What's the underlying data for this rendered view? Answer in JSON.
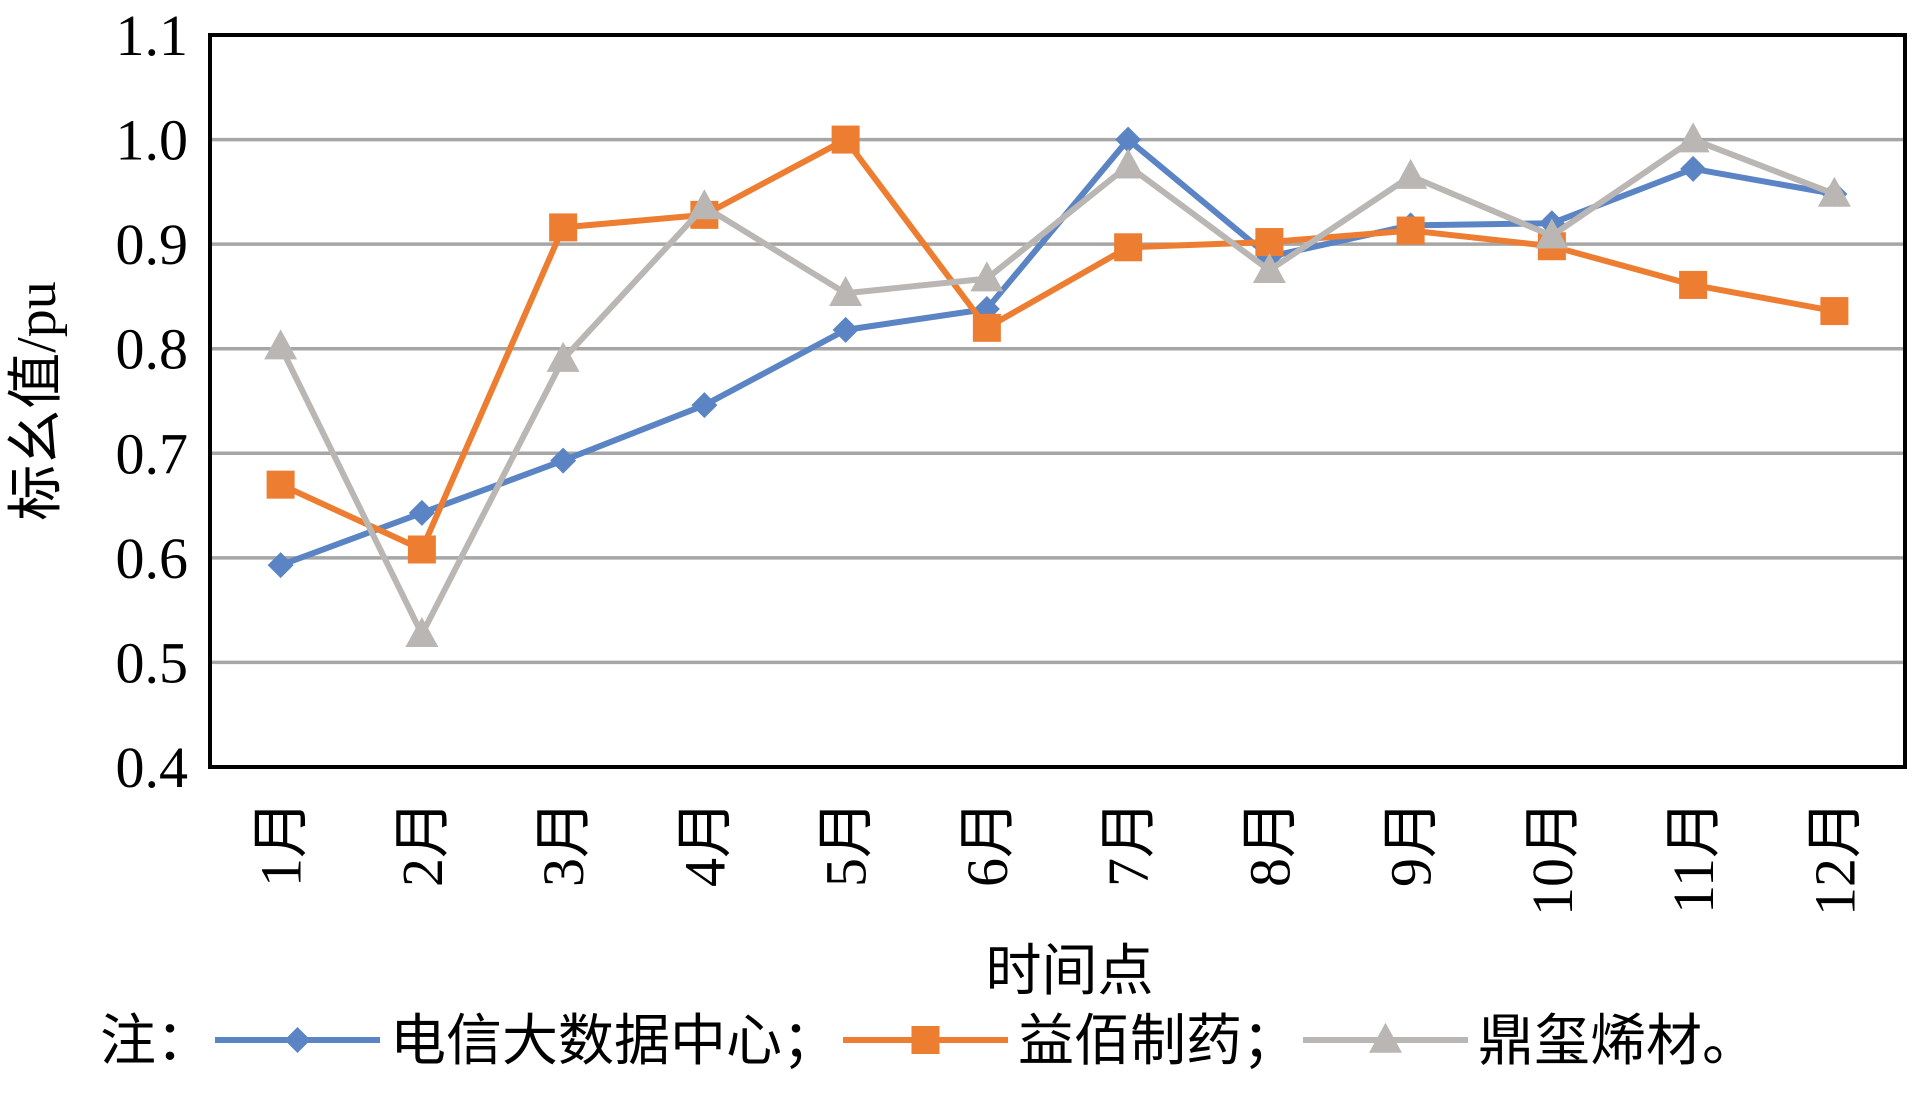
{
  "chart_data": {
    "type": "line",
    "ylabel": "标幺值/pu",
    "xlabel": "时间点",
    "ylim": [
      0.4,
      1.1
    ],
    "yticks": [
      "0.4",
      "0.5",
      "0.6",
      "0.7",
      "0.8",
      "0.9",
      "1.0",
      "1.1"
    ],
    "yticks_values": [
      0.4,
      0.5,
      0.6,
      0.7,
      0.8,
      0.9,
      1.0,
      1.1
    ],
    "categories": [
      "1月",
      "2月",
      "3月",
      "4月",
      "5月",
      "6月",
      "7月",
      "8月",
      "9月",
      "10月",
      "11月",
      "12月"
    ],
    "grid": true,
    "legend_position": "bottom",
    "note_prefix": "注：",
    "series": [
      {
        "name": "电信大数据中心",
        "suffix": "；",
        "color": "#5b84c4",
        "marker": "diamond",
        "values": [
          0.593,
          0.643,
          0.693,
          0.746,
          0.818,
          0.838,
          1.0,
          0.888,
          0.918,
          0.92,
          0.972,
          0.948
        ]
      },
      {
        "name": "益佰制药",
        "suffix": "；",
        "color": "#ed7d31",
        "marker": "square",
        "values": [
          0.67,
          0.608,
          0.916,
          0.928,
          1.0,
          0.82,
          0.897,
          0.902,
          0.913,
          0.898,
          0.861,
          0.836
        ]
      },
      {
        "name": "鼎玺烯材",
        "suffix": "。",
        "color": "#b9b6b3",
        "marker": "triangle",
        "values": [
          0.802,
          0.527,
          0.79,
          0.936,
          0.853,
          0.867,
          0.975,
          0.875,
          0.965,
          0.908,
          1.0,
          0.948
        ]
      }
    ]
  }
}
